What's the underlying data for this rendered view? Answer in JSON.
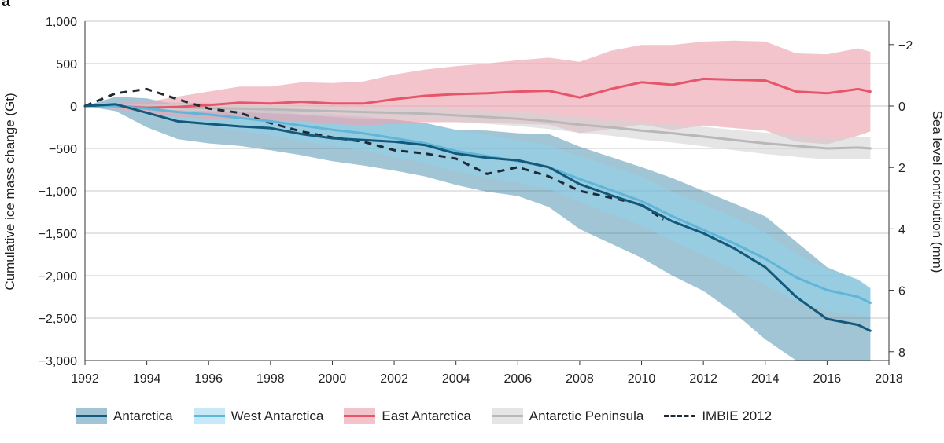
{
  "panel_label": "a",
  "chart_data": {
    "type": "line",
    "xlim": [
      1992,
      2018
    ],
    "ylim": [
      -3000,
      1000
    ],
    "xticks": [
      1992,
      1994,
      1996,
      1998,
      2000,
      2002,
      2004,
      2006,
      2008,
      2010,
      2012,
      2014,
      2016,
      2018
    ],
    "yticks": [
      1000,
      500,
      0,
      -500,
      -1000,
      -1500,
      -2000,
      -2500,
      -3000
    ],
    "ytick_labels": [
      "1,000",
      "500",
      "0",
      "−500",
      "−1,000",
      "−1,500",
      "−2,000",
      "−2,500",
      "−3,000"
    ],
    "ylabel": "Cumulative ice mass change (Gt)",
    "y2label": "Sea level contribution (mm)",
    "y2ticks": [
      -2,
      0,
      2,
      4,
      6,
      8
    ],
    "y2tick_labels": [
      "−2",
      "0",
      "2",
      "4",
      "6",
      "8"
    ],
    "y2_gt_per_mm": -362,
    "grid": true,
    "legend_position": "bottom",
    "x": [
      1992,
      1993,
      1994,
      1995,
      1996,
      1997,
      1998,
      1999,
      2000,
      2001,
      2002,
      2003,
      2004,
      2005,
      2006,
      2007,
      2008,
      2009,
      2010,
      2011,
      2012,
      2013,
      2014,
      2015,
      2016,
      2017,
      2017.4
    ],
    "series": [
      {
        "name": "Antarctica",
        "color": "#14587a",
        "band_color": "#2f7fa0",
        "band_opacity": 0.45,
        "values": [
          0,
          20,
          -80,
          -180,
          -210,
          -240,
          -260,
          -330,
          -380,
          -400,
          -420,
          -460,
          -560,
          -610,
          -640,
          -720,
          -920,
          -1050,
          -1170,
          -1360,
          -1500,
          -1680,
          -1900,
          -2250,
          -2510,
          -2580,
          -2650
        ],
        "lower": [
          0,
          -60,
          -250,
          -390,
          -440,
          -470,
          -520,
          -580,
          -650,
          -700,
          -760,
          -830,
          -930,
          -1010,
          -1060,
          -1190,
          -1450,
          -1620,
          -1790,
          -2000,
          -2180,
          -2440,
          -2750,
          -3000,
          -3000,
          -3000,
          -3000
        ],
        "upper": [
          0,
          110,
          90,
          10,
          -20,
          -30,
          -40,
          -100,
          -130,
          -150,
          -160,
          -200,
          -280,
          -290,
          -320,
          -330,
          -480,
          -600,
          -720,
          -850,
          -1000,
          -1150,
          -1300,
          -1600,
          -1900,
          -2050,
          -2150
        ]
      },
      {
        "name": "West Antarctica",
        "color": "#5fb6d8",
        "band_color": "#8fd4ee",
        "band_opacity": 0.5,
        "values": [
          0,
          0,
          -30,
          -70,
          -100,
          -140,
          -180,
          -230,
          -280,
          -320,
          -380,
          -440,
          -530,
          -590,
          -650,
          -720,
          -860,
          -990,
          -1120,
          -1300,
          -1460,
          -1620,
          -1800,
          -2020,
          -2170,
          -2250,
          -2320
        ],
        "lower": [
          0,
          -40,
          -110,
          -180,
          -240,
          -290,
          -350,
          -410,
          -470,
          -520,
          -600,
          -670,
          -770,
          -840,
          -900,
          -980,
          -1130,
          -1270,
          -1410,
          -1590,
          -1760,
          -1930,
          -2110,
          -2300,
          -2420,
          -2460,
          -2500
        ],
        "upper": [
          0,
          40,
          50,
          40,
          40,
          10,
          -10,
          -50,
          -90,
          -120,
          -160,
          -210,
          -290,
          -340,
          -400,
          -460,
          -590,
          -710,
          -830,
          -1010,
          -1160,
          -1310,
          -1490,
          -1740,
          -1920,
          -2040,
          -2140
        ]
      },
      {
        "name": "East Antarctica",
        "color": "#e5566a",
        "band_color": "#eda4b1",
        "band_opacity": 0.65,
        "values": [
          0,
          0,
          -20,
          -10,
          10,
          40,
          30,
          50,
          30,
          30,
          80,
          120,
          140,
          150,
          170,
          180,
          100,
          200,
          280,
          250,
          320,
          310,
          300,
          170,
          150,
          200,
          170
        ],
        "lower": [
          0,
          -40,
          -90,
          -130,
          -150,
          -150,
          -170,
          -180,
          -210,
          -230,
          -210,
          -190,
          -190,
          -200,
          -210,
          -220,
          -320,
          -270,
          -220,
          -280,
          -230,
          -260,
          -290,
          -420,
          -450,
          -350,
          -300
        ],
        "upper": [
          0,
          40,
          50,
          110,
          170,
          230,
          230,
          280,
          270,
          290,
          370,
          430,
          470,
          500,
          540,
          570,
          520,
          650,
          720,
          720,
          760,
          770,
          760,
          620,
          610,
          680,
          640
        ]
      },
      {
        "name": "Antarctic Peninsula",
        "color": "#b8b8b8",
        "band_color": "#d4d4d4",
        "band_opacity": 0.6,
        "values": [
          0,
          -5,
          -10,
          -15,
          -25,
          -30,
          -40,
          -50,
          -60,
          -70,
          -80,
          -90,
          -110,
          -130,
          -150,
          -180,
          -220,
          -250,
          -290,
          -320,
          -360,
          -400,
          -440,
          -470,
          -500,
          -490,
          -500
        ],
        "lower": [
          0,
          -25,
          -35,
          -50,
          -60,
          -70,
          -85,
          -100,
          -115,
          -130,
          -145,
          -160,
          -185,
          -210,
          -235,
          -270,
          -315,
          -350,
          -395,
          -430,
          -475,
          -520,
          -565,
          -600,
          -630,
          -620,
          -630
        ],
        "upper": [
          0,
          15,
          15,
          20,
          10,
          10,
          5,
          0,
          -5,
          -10,
          -15,
          -20,
          -35,
          -50,
          -65,
          -90,
          -125,
          -150,
          -185,
          -210,
          -245,
          -280,
          -315,
          -340,
          -370,
          -360,
          -370
        ]
      },
      {
        "name": "IMBIE 2012",
        "color": "#1f2a36",
        "dashed": true,
        "x": [
          1992,
          1993,
          1994,
          1995,
          1996,
          1997,
          1998,
          1999,
          2000,
          2001,
          2002,
          2003,
          2004,
          2005,
          2006,
          2007,
          2008,
          2009,
          2010,
          2010.7
        ],
        "values": [
          0,
          150,
          200,
          80,
          -30,
          -80,
          -200,
          -300,
          -370,
          -420,
          -520,
          -560,
          -620,
          -800,
          -720,
          -830,
          -1000,
          -1080,
          -1160,
          -1340
        ]
      }
    ]
  }
}
